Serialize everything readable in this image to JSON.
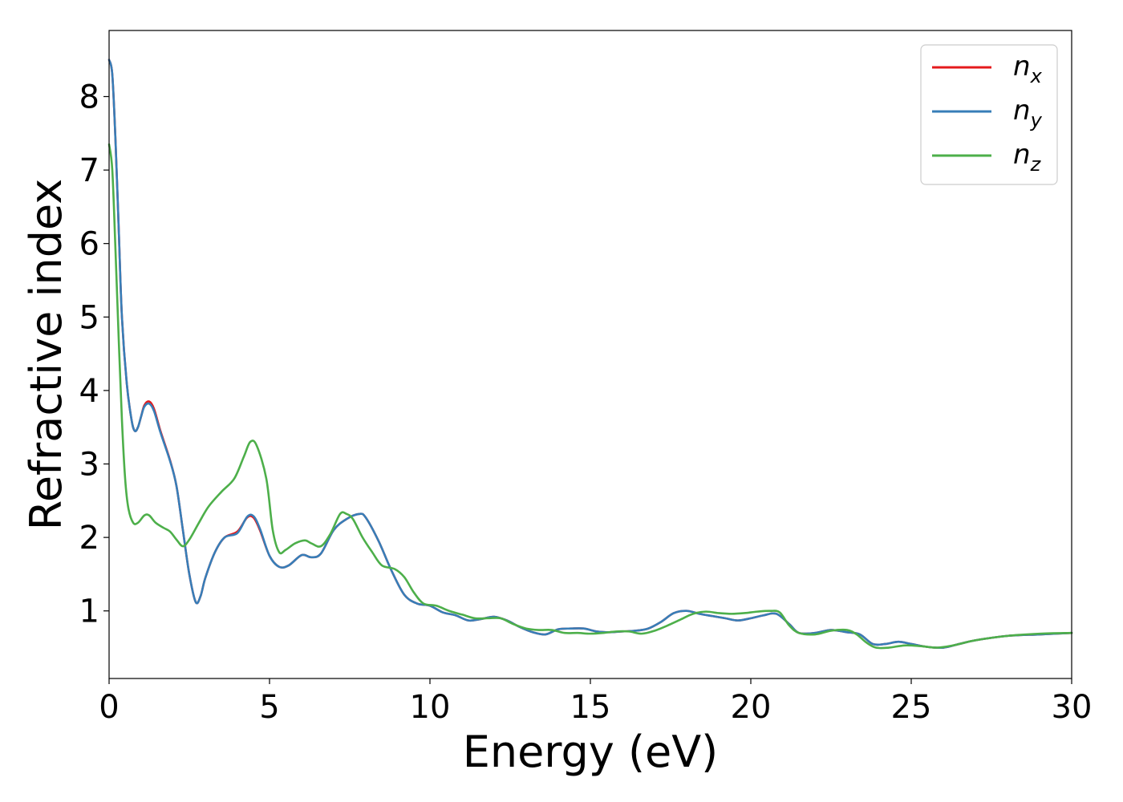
{
  "chart_data": {
    "type": "line",
    "title": "",
    "xlabel": "Energy (eV)",
    "ylabel": "Refractive index",
    "xlim": [
      0,
      30
    ],
    "ylim": [
      0.08,
      8.9
    ],
    "xticks": [
      0,
      5,
      10,
      15,
      20,
      25,
      30
    ],
    "yticks": [
      1,
      2,
      3,
      4,
      5,
      6,
      7,
      8
    ],
    "grid": false,
    "legend_position": "top-right",
    "series": [
      {
        "name": "n",
        "subscript": "x",
        "color": "#e41a1c",
        "points": [
          [
            0,
            8.5
          ],
          [
            0.1,
            8.3
          ],
          [
            0.2,
            7.4
          ],
          [
            0.3,
            6.2
          ],
          [
            0.4,
            5.0
          ],
          [
            0.55,
            4.1
          ],
          [
            0.7,
            3.6
          ],
          [
            0.8,
            3.45
          ],
          [
            0.9,
            3.5
          ],
          [
            1.0,
            3.65
          ],
          [
            1.1,
            3.8
          ],
          [
            1.25,
            3.85
          ],
          [
            1.4,
            3.75
          ],
          [
            1.6,
            3.45
          ],
          [
            1.9,
            3.05
          ],
          [
            2.1,
            2.7
          ],
          [
            2.3,
            2.1
          ],
          [
            2.5,
            1.5
          ],
          [
            2.7,
            1.12
          ],
          [
            2.85,
            1.2
          ],
          [
            3.0,
            1.45
          ],
          [
            3.3,
            1.8
          ],
          [
            3.6,
            2.0
          ],
          [
            4.0,
            2.08
          ],
          [
            4.3,
            2.27
          ],
          [
            4.5,
            2.27
          ],
          [
            4.7,
            2.1
          ],
          [
            5.0,
            1.75
          ],
          [
            5.3,
            1.6
          ],
          [
            5.6,
            1.62
          ],
          [
            6.0,
            1.76
          ],
          [
            6.3,
            1.73
          ],
          [
            6.6,
            1.78
          ],
          [
            7.0,
            2.1
          ],
          [
            7.4,
            2.25
          ],
          [
            7.8,
            2.32
          ],
          [
            8.0,
            2.27
          ],
          [
            8.4,
            1.95
          ],
          [
            8.8,
            1.55
          ],
          [
            9.2,
            1.22
          ],
          [
            9.6,
            1.1
          ],
          [
            10.0,
            1.07
          ],
          [
            10.4,
            0.98
          ],
          [
            10.8,
            0.94
          ],
          [
            11.2,
            0.87
          ],
          [
            11.6,
            0.89
          ],
          [
            12.0,
            0.92
          ],
          [
            12.4,
            0.87
          ],
          [
            12.8,
            0.78
          ],
          [
            13.2,
            0.71
          ],
          [
            13.6,
            0.68
          ],
          [
            14.0,
            0.75
          ],
          [
            14.4,
            0.76
          ],
          [
            14.8,
            0.76
          ],
          [
            15.2,
            0.72
          ],
          [
            15.6,
            0.71
          ],
          [
            16.0,
            0.72
          ],
          [
            16.4,
            0.73
          ],
          [
            16.8,
            0.76
          ],
          [
            17.2,
            0.85
          ],
          [
            17.6,
            0.97
          ],
          [
            18.0,
            1.0
          ],
          [
            18.4,
            0.96
          ],
          [
            18.8,
            0.93
          ],
          [
            19.2,
            0.9
          ],
          [
            19.6,
            0.87
          ],
          [
            20.0,
            0.9
          ],
          [
            20.4,
            0.94
          ],
          [
            20.8,
            0.96
          ],
          [
            21.2,
            0.82
          ],
          [
            21.5,
            0.7
          ],
          [
            22.0,
            0.7
          ],
          [
            22.5,
            0.74
          ],
          [
            23.0,
            0.71
          ],
          [
            23.4,
            0.68
          ],
          [
            23.8,
            0.55
          ],
          [
            24.2,
            0.55
          ],
          [
            24.6,
            0.58
          ],
          [
            25.0,
            0.55
          ],
          [
            25.5,
            0.51
          ],
          [
            26.0,
            0.5
          ],
          [
            26.5,
            0.55
          ],
          [
            27.0,
            0.6
          ],
          [
            28.0,
            0.66
          ],
          [
            29.0,
            0.68
          ],
          [
            30.0,
            0.7
          ]
        ]
      },
      {
        "name": "n",
        "subscript": "y",
        "color": "#377eb8",
        "points": [
          [
            0,
            8.5
          ],
          [
            0.1,
            8.3
          ],
          [
            0.2,
            7.4
          ],
          [
            0.3,
            6.2
          ],
          [
            0.4,
            5.0
          ],
          [
            0.55,
            4.1
          ],
          [
            0.7,
            3.6
          ],
          [
            0.8,
            3.45
          ],
          [
            0.9,
            3.5
          ],
          [
            1.0,
            3.65
          ],
          [
            1.1,
            3.78
          ],
          [
            1.25,
            3.82
          ],
          [
            1.4,
            3.72
          ],
          [
            1.6,
            3.43
          ],
          [
            1.9,
            3.04
          ],
          [
            2.1,
            2.7
          ],
          [
            2.3,
            2.1
          ],
          [
            2.5,
            1.5
          ],
          [
            2.7,
            1.12
          ],
          [
            2.85,
            1.2
          ],
          [
            3.0,
            1.45
          ],
          [
            3.3,
            1.8
          ],
          [
            3.6,
            2.0
          ],
          [
            4.0,
            2.06
          ],
          [
            4.3,
            2.28
          ],
          [
            4.5,
            2.29
          ],
          [
            4.7,
            2.12
          ],
          [
            5.0,
            1.75
          ],
          [
            5.3,
            1.6
          ],
          [
            5.6,
            1.62
          ],
          [
            6.0,
            1.76
          ],
          [
            6.3,
            1.73
          ],
          [
            6.6,
            1.78
          ],
          [
            7.0,
            2.1
          ],
          [
            7.4,
            2.25
          ],
          [
            7.8,
            2.32
          ],
          [
            8.0,
            2.27
          ],
          [
            8.4,
            1.95
          ],
          [
            8.8,
            1.55
          ],
          [
            9.2,
            1.22
          ],
          [
            9.6,
            1.1
          ],
          [
            10.0,
            1.07
          ],
          [
            10.4,
            0.98
          ],
          [
            10.8,
            0.94
          ],
          [
            11.2,
            0.87
          ],
          [
            11.6,
            0.89
          ],
          [
            12.0,
            0.92
          ],
          [
            12.4,
            0.87
          ],
          [
            12.8,
            0.78
          ],
          [
            13.2,
            0.71
          ],
          [
            13.6,
            0.68
          ],
          [
            14.0,
            0.75
          ],
          [
            14.4,
            0.76
          ],
          [
            14.8,
            0.76
          ],
          [
            15.2,
            0.72
          ],
          [
            15.6,
            0.71
          ],
          [
            16.0,
            0.72
          ],
          [
            16.4,
            0.73
          ],
          [
            16.8,
            0.76
          ],
          [
            17.2,
            0.85
          ],
          [
            17.6,
            0.97
          ],
          [
            18.0,
            1.0
          ],
          [
            18.4,
            0.96
          ],
          [
            18.8,
            0.93
          ],
          [
            19.2,
            0.9
          ],
          [
            19.6,
            0.87
          ],
          [
            20.0,
            0.9
          ],
          [
            20.4,
            0.94
          ],
          [
            20.8,
            0.96
          ],
          [
            21.2,
            0.82
          ],
          [
            21.5,
            0.7
          ],
          [
            22.0,
            0.7
          ],
          [
            22.5,
            0.74
          ],
          [
            23.0,
            0.71
          ],
          [
            23.4,
            0.68
          ],
          [
            23.8,
            0.55
          ],
          [
            24.2,
            0.55
          ],
          [
            24.6,
            0.58
          ],
          [
            25.0,
            0.55
          ],
          [
            25.5,
            0.51
          ],
          [
            26.0,
            0.5
          ],
          [
            26.5,
            0.55
          ],
          [
            27.0,
            0.6
          ],
          [
            28.0,
            0.66
          ],
          [
            29.0,
            0.68
          ],
          [
            30.0,
            0.7
          ]
        ]
      },
      {
        "name": "n",
        "subscript": "z",
        "color": "#4daf4a",
        "points": [
          [
            0,
            7.35
          ],
          [
            0.1,
            7.0
          ],
          [
            0.2,
            5.9
          ],
          [
            0.3,
            4.7
          ],
          [
            0.4,
            3.6
          ],
          [
            0.5,
            2.8
          ],
          [
            0.6,
            2.4
          ],
          [
            0.75,
            2.2
          ],
          [
            0.9,
            2.2
          ],
          [
            1.1,
            2.3
          ],
          [
            1.25,
            2.3
          ],
          [
            1.45,
            2.2
          ],
          [
            1.7,
            2.13
          ],
          [
            1.9,
            2.08
          ],
          [
            2.1,
            1.97
          ],
          [
            2.3,
            1.88
          ],
          [
            2.5,
            1.97
          ],
          [
            2.8,
            2.2
          ],
          [
            3.1,
            2.42
          ],
          [
            3.5,
            2.62
          ],
          [
            3.9,
            2.8
          ],
          [
            4.2,
            3.1
          ],
          [
            4.4,
            3.3
          ],
          [
            4.6,
            3.25
          ],
          [
            4.9,
            2.8
          ],
          [
            5.1,
            2.1
          ],
          [
            5.3,
            1.8
          ],
          [
            5.5,
            1.83
          ],
          [
            5.8,
            1.92
          ],
          [
            6.1,
            1.96
          ],
          [
            6.3,
            1.92
          ],
          [
            6.6,
            1.88
          ],
          [
            6.9,
            2.05
          ],
          [
            7.2,
            2.32
          ],
          [
            7.4,
            2.32
          ],
          [
            7.6,
            2.25
          ],
          [
            7.9,
            2.0
          ],
          [
            8.2,
            1.8
          ],
          [
            8.5,
            1.62
          ],
          [
            8.9,
            1.57
          ],
          [
            9.2,
            1.46
          ],
          [
            9.5,
            1.25
          ],
          [
            9.8,
            1.1
          ],
          [
            10.2,
            1.07
          ],
          [
            10.6,
            1.0
          ],
          [
            11.0,
            0.95
          ],
          [
            11.4,
            0.9
          ],
          [
            11.8,
            0.9
          ],
          [
            12.2,
            0.9
          ],
          [
            12.6,
            0.82
          ],
          [
            13.0,
            0.76
          ],
          [
            13.4,
            0.74
          ],
          [
            13.8,
            0.74
          ],
          [
            14.2,
            0.7
          ],
          [
            14.6,
            0.7
          ],
          [
            15.0,
            0.69
          ],
          [
            15.4,
            0.7
          ],
          [
            15.8,
            0.72
          ],
          [
            16.2,
            0.72
          ],
          [
            16.6,
            0.69
          ],
          [
            17.0,
            0.73
          ],
          [
            17.4,
            0.8
          ],
          [
            17.8,
            0.88
          ],
          [
            18.2,
            0.96
          ],
          [
            18.6,
            0.99
          ],
          [
            19.0,
            0.97
          ],
          [
            19.4,
            0.96
          ],
          [
            19.8,
            0.97
          ],
          [
            20.2,
            0.99
          ],
          [
            20.6,
            1.0
          ],
          [
            20.9,
            0.98
          ],
          [
            21.2,
            0.8
          ],
          [
            21.5,
            0.7
          ],
          [
            22.0,
            0.68
          ],
          [
            22.5,
            0.73
          ],
          [
            23.0,
            0.74
          ],
          [
            23.3,
            0.68
          ],
          [
            23.6,
            0.57
          ],
          [
            23.9,
            0.5
          ],
          [
            24.3,
            0.5
          ],
          [
            24.8,
            0.53
          ],
          [
            25.3,
            0.52
          ],
          [
            25.8,
            0.5
          ],
          [
            26.3,
            0.53
          ],
          [
            27.0,
            0.6
          ],
          [
            28.0,
            0.66
          ],
          [
            29.0,
            0.69
          ],
          [
            30.0,
            0.7
          ]
        ]
      }
    ]
  }
}
